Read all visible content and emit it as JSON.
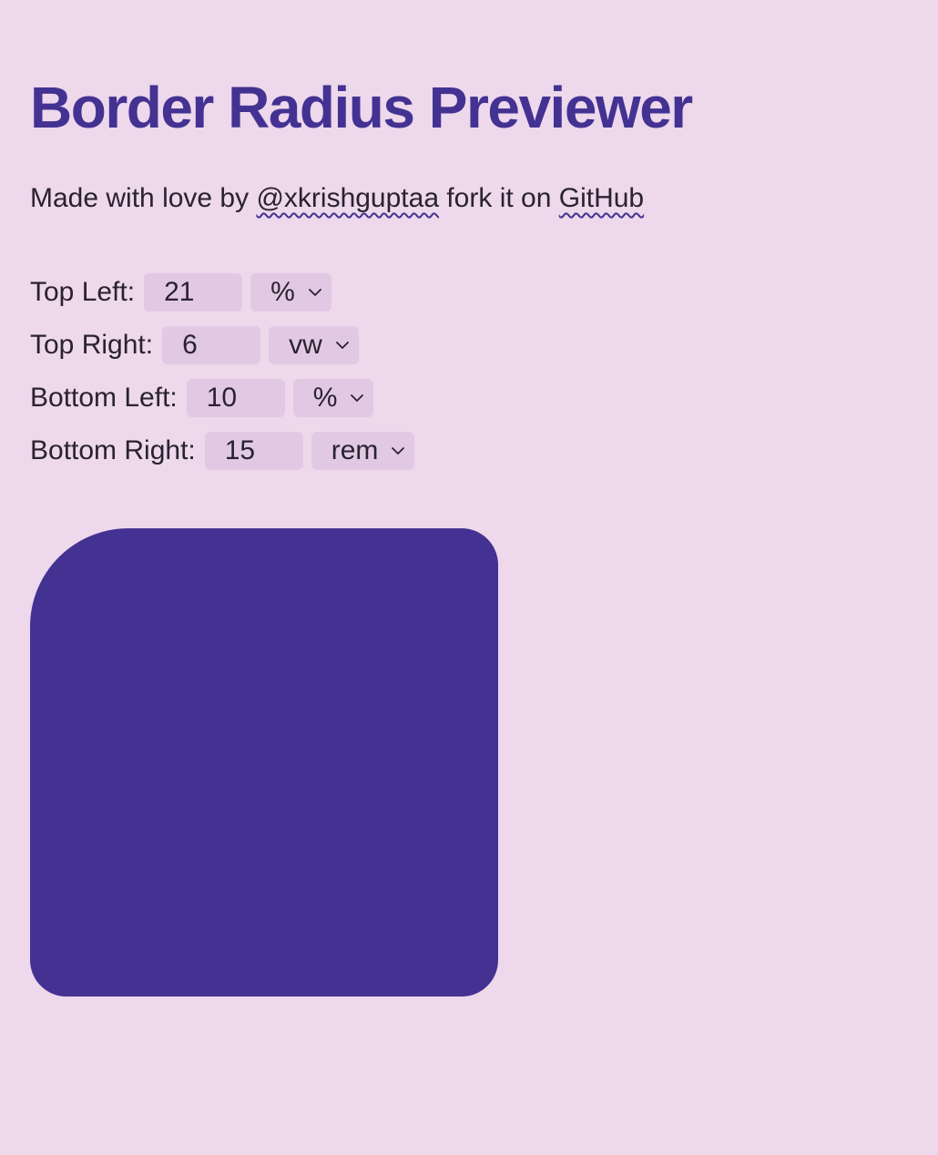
{
  "header": {
    "title": "Border Radius Previewer"
  },
  "tagline": {
    "prefix": "Made with love by ",
    "author": "@xkrishguptaa",
    "middle": " fork it on ",
    "repo": "GitHub"
  },
  "controls": [
    {
      "label": "Top Left:",
      "value": "21",
      "unit": "%"
    },
    {
      "label": "Top Right:",
      "value": "6",
      "unit": "vw"
    },
    {
      "label": "Bottom Left:",
      "value": "10",
      "unit": "%"
    },
    {
      "label": "Bottom Right:",
      "value": "15",
      "unit": "rem"
    }
  ],
  "preview": {
    "color": "#433292"
  },
  "icons": {
    "select": "chevron-down-icon"
  },
  "colors": {
    "background": "#edd8ec",
    "accent": "#433292",
    "field": "#e1c9e4"
  }
}
